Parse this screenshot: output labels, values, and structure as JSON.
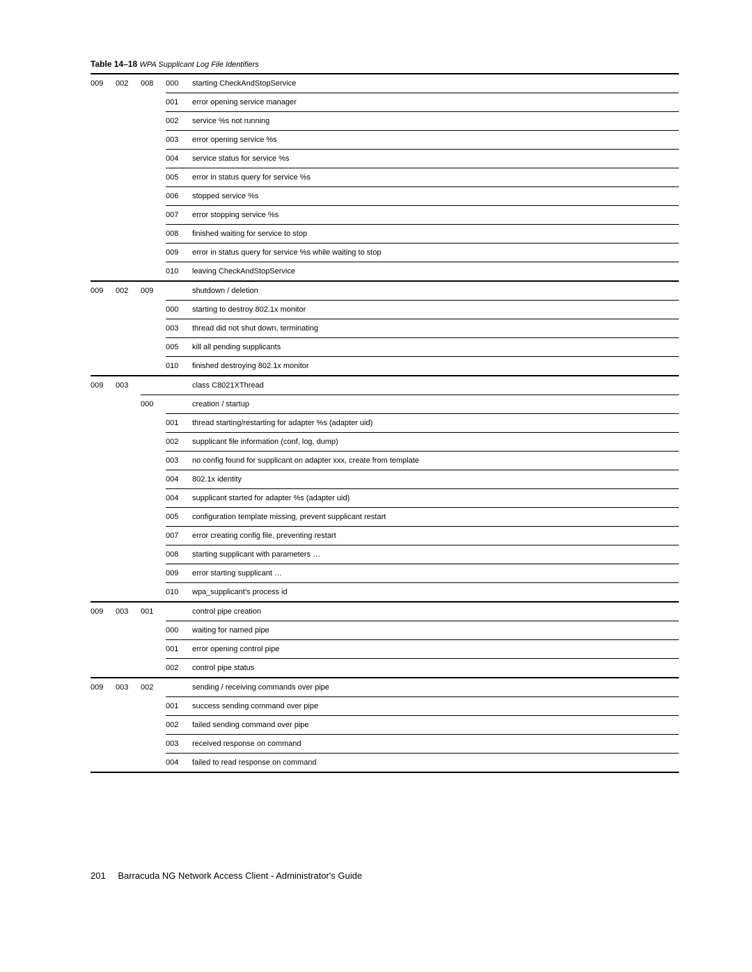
{
  "caption_bold": "Table 14–18",
  "caption_italic": "WPA Supplicant Log File Identifiers",
  "footer_page": "201",
  "footer_text": "Barracuda NG Network Access Client - Administrator's Guide",
  "rows": [
    {
      "c1": "009",
      "c2": "002",
      "c3": "008",
      "c4": "000",
      "c5": "starting CheckAndStopService",
      "bb": "c4"
    },
    {
      "c1": "",
      "c2": "",
      "c3": "",
      "c4": "001",
      "c5": "error opening service manager",
      "bb": "c4"
    },
    {
      "c1": "",
      "c2": "",
      "c3": "",
      "c4": "002",
      "c5": "service %s not running",
      "bb": "c4"
    },
    {
      "c1": "",
      "c2": "",
      "c3": "",
      "c4": "003",
      "c5": "error opening service %s",
      "bb": "c4"
    },
    {
      "c1": "",
      "c2": "",
      "c3": "",
      "c4": "004",
      "c5": "service status for service %s",
      "bb": "c4"
    },
    {
      "c1": "",
      "c2": "",
      "c3": "",
      "c4": "005",
      "c5": "error in status query for service %s",
      "bb": "c4"
    },
    {
      "c1": "",
      "c2": "",
      "c3": "",
      "c4": "006",
      "c5": "stopped service %s",
      "bb": "c4"
    },
    {
      "c1": "",
      "c2": "",
      "c3": "",
      "c4": "007",
      "c5": "error stopping service %s",
      "bb": "c4"
    },
    {
      "c1": "",
      "c2": "",
      "c3": "",
      "c4": "008",
      "c5": "finished waiting for service to stop",
      "bb": "c4"
    },
    {
      "c1": "",
      "c2": "",
      "c3": "",
      "c4": "009",
      "c5": "error in status query for service %s while waiting to stop",
      "bb": "c4"
    },
    {
      "c1": "",
      "c2": "",
      "c3": "",
      "c4": "010",
      "c5": "leaving CheckAndStopService",
      "bb": "full"
    },
    {
      "c1": "009",
      "c2": "002",
      "c3": "009",
      "c4": "",
      "c5": "shutdown / deletion",
      "bb": "c4"
    },
    {
      "c1": "",
      "c2": "",
      "c3": "",
      "c4": "000",
      "c5": "starting to destroy 802.1x monitor",
      "bb": "c4"
    },
    {
      "c1": "",
      "c2": "",
      "c3": "",
      "c4": "003",
      "c5": "thread did not shut down, terminating",
      "bb": "c4"
    },
    {
      "c1": "",
      "c2": "",
      "c3": "",
      "c4": "005",
      "c5": "kill all pending supplicants",
      "bb": "c4"
    },
    {
      "c1": "",
      "c2": "",
      "c3": "",
      "c4": "010",
      "c5": "finished destroying 802.1x monitor",
      "bb": "full"
    },
    {
      "c1": "009",
      "c2": "003",
      "c3": "",
      "c4": "",
      "c5": "class C8021XThread",
      "bb": "c3"
    },
    {
      "c1": "",
      "c2": "",
      "c3": "000",
      "c4": "",
      "c5": "creation / startup",
      "bb": "c4"
    },
    {
      "c1": "",
      "c2": "",
      "c3": "",
      "c4": "001",
      "c5": "thread starting/restarting for adapter %s (adapter uid)",
      "bb": "c4"
    },
    {
      "c1": "",
      "c2": "",
      "c3": "",
      "c4": "002",
      "c5": "supplicant file information (conf, log, dump)",
      "bb": "c4"
    },
    {
      "c1": "",
      "c2": "",
      "c3": "",
      "c4": "003",
      "c5": "no config found for supplicant on adapter xxx, create from template",
      "bb": "c4"
    },
    {
      "c1": "",
      "c2": "",
      "c3": "",
      "c4": "004",
      "c5": "802.1x identity",
      "bb": "c4"
    },
    {
      "c1": "",
      "c2": "",
      "c3": "",
      "c4": "004",
      "c5": "supplicant started for adapter %s (adapter uid)",
      "bb": "c4"
    },
    {
      "c1": "",
      "c2": "",
      "c3": "",
      "c4": "005",
      "c5": "configuration template missing, prevent supplicant restart",
      "bb": "c4"
    },
    {
      "c1": "",
      "c2": "",
      "c3": "",
      "c4": "007",
      "c5": "error creating config file, preventing restart",
      "bb": "c4"
    },
    {
      "c1": "",
      "c2": "",
      "c3": "",
      "c4": "008",
      "c5": "starting supplicant with parameters …",
      "bb": "c4"
    },
    {
      "c1": "",
      "c2": "",
      "c3": "",
      "c4": "009",
      "c5": "error starting supplicant …",
      "bb": "c4"
    },
    {
      "c1": "",
      "c2": "",
      "c3": "",
      "c4": "010",
      "c5": "wpa_supplicant's process id",
      "bb": "full"
    },
    {
      "c1": "009",
      "c2": "003",
      "c3": "001",
      "c4": "",
      "c5": "control pipe creation",
      "bb": "c4"
    },
    {
      "c1": "",
      "c2": "",
      "c3": "",
      "c4": "000",
      "c5": "waiting for named pipe",
      "bb": "c4"
    },
    {
      "c1": "",
      "c2": "",
      "c3": "",
      "c4": "001",
      "c5": "error opening control pipe",
      "bb": "c4"
    },
    {
      "c1": "",
      "c2": "",
      "c3": "",
      "c4": "002",
      "c5": "control pipe status",
      "bb": "full"
    },
    {
      "c1": "009",
      "c2": "003",
      "c3": "002",
      "c4": "",
      "c5": "sending / receiving commands over pipe",
      "bb": "c4"
    },
    {
      "c1": "",
      "c2": "",
      "c3": "",
      "c4": "001",
      "c5": "success sending command over pipe",
      "bb": "c4"
    },
    {
      "c1": "",
      "c2": "",
      "c3": "",
      "c4": "002",
      "c5": "failed sending command over pipe",
      "bb": "c4"
    },
    {
      "c1": "",
      "c2": "",
      "c3": "",
      "c4": "003",
      "c5": "received response on command",
      "bb": "c4"
    },
    {
      "c1": "",
      "c2": "",
      "c3": "",
      "c4": "004",
      "c5": "failed to read response on command",
      "bb": "full"
    }
  ]
}
